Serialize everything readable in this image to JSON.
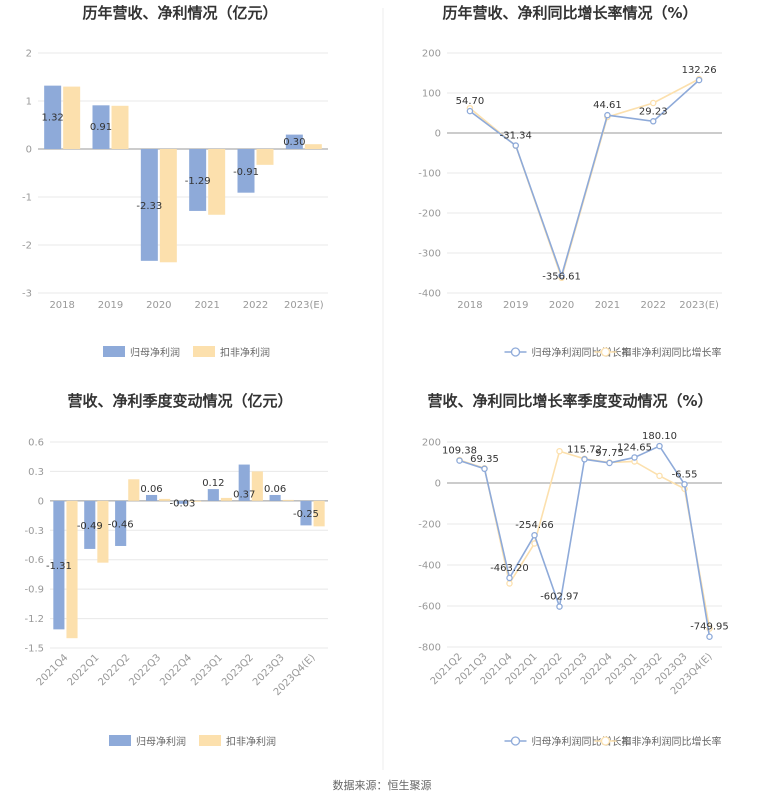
{
  "source": "数据来源：恒生聚源",
  "colors": {
    "blue": "#8eaad9",
    "yellow": "#fce0ad"
  },
  "chart_data": [
    {
      "type": "bar",
      "title": "历年营收、净利情况（亿元）",
      "categories": [
        "2018",
        "2019",
        "2020",
        "2021",
        "2022",
        "2023(E)"
      ],
      "ylim": [
        -3,
        2
      ],
      "yticks": [
        "-3",
        "-2",
        "-1",
        "0",
        "1",
        "2"
      ],
      "series": [
        {
          "name": "归母净利润",
          "values": [
            1.32,
            0.91,
            -2.33,
            -1.29,
            -0.91,
            0.3
          ]
        },
        {
          "name": "扣非净利润",
          "values": [
            1.3,
            0.9,
            -2.36,
            -1.37,
            -0.33,
            0.1
          ]
        }
      ],
      "data_labels": [
        "1.32",
        "0.91",
        "-2.33",
        "-1.29",
        "-0.91",
        "0.30"
      ],
      "legend": "bottom"
    },
    {
      "type": "line",
      "title": "历年营收、净利同比增长率情况（%）",
      "categories": [
        "2018",
        "2019",
        "2020",
        "2021",
        "2022",
        "2023(E)"
      ],
      "ylim": [
        -400,
        200
      ],
      "yticks": [
        "-400",
        "-300",
        "-200",
        "-100",
        "0",
        "100",
        "200"
      ],
      "series": [
        {
          "name": "归母净利润同比增长率",
          "values": [
            54.7,
            -31.34,
            -356.61,
            44.61,
            29.23,
            132.26
          ]
        },
        {
          "name": "扣非净利润同比增长率",
          "values": [
            62,
            -32,
            -362,
            40,
            75,
            135
          ]
        }
      ],
      "data_labels": [
        "54.70",
        "-31.34",
        "-356.61",
        "44.61",
        "29.23",
        "132.26"
      ],
      "legend": "bottom"
    },
    {
      "type": "bar",
      "title": "营收、净利季度变动情况（亿元）",
      "categories": [
        "2021Q4",
        "2022Q1",
        "2022Q2",
        "2022Q3",
        "2022Q4",
        "2023Q1",
        "2023Q2",
        "2023Q3",
        "2023Q4(E)"
      ],
      "ylim": [
        -1.5,
        0.6
      ],
      "yticks": [
        "-1.5",
        "-1.2",
        "-0.9",
        "-0.6",
        "-0.3",
        "0",
        "0.3",
        "0.6"
      ],
      "series": [
        {
          "name": "归母净利润",
          "values": [
            -1.31,
            -0.49,
            -0.46,
            0.06,
            -0.03,
            0.12,
            0.37,
            0.06,
            -0.25
          ]
        },
        {
          "name": "扣非净利润",
          "values": [
            -1.4,
            -0.63,
            0.22,
            0.02,
            -0.01,
            0.03,
            0.3,
            0.01,
            -0.26
          ]
        }
      ],
      "data_labels": [
        "-1.31",
        "-0.49",
        "-0.46",
        "0.06",
        "-0.03",
        "0.12",
        "0.37",
        "0.06",
        "-0.25"
      ],
      "legend": "bottom"
    },
    {
      "type": "line",
      "title": "营收、净利同比增长率季度变动情况（%）",
      "categories": [
        "2021Q2",
        "2021Q3",
        "2021Q4",
        "2022Q1",
        "2022Q2",
        "2022Q3",
        "2022Q4",
        "2023Q1",
        "2023Q2",
        "2023Q3",
        "2023Q4(E)"
      ],
      "ylim": [
        -800,
        200
      ],
      "yticks": [
        "-800",
        "-600",
        "-400",
        "-200",
        "0",
        "200"
      ],
      "series": [
        {
          "name": "归母净利润同比增长率",
          "values": [
            109.38,
            69.35,
            -463.2,
            -254.66,
            -602.97,
            115.72,
            97.75,
            124.65,
            180.1,
            -6.55,
            -749.95
          ]
        },
        {
          "name": "扣非净利润同比增长率",
          "values": [
            112,
            72,
            -490,
            -295,
            155,
            118,
            100,
            105,
            35,
            -28,
            -710
          ]
        }
      ],
      "data_labels": [
        "109.38",
        "69.35",
        "-463.20",
        "-254.66",
        "-602.97",
        "115.72",
        "97.75",
        "124.65",
        "180.10",
        "-6.55",
        "-749.95"
      ],
      "legend": "bottom"
    }
  ]
}
